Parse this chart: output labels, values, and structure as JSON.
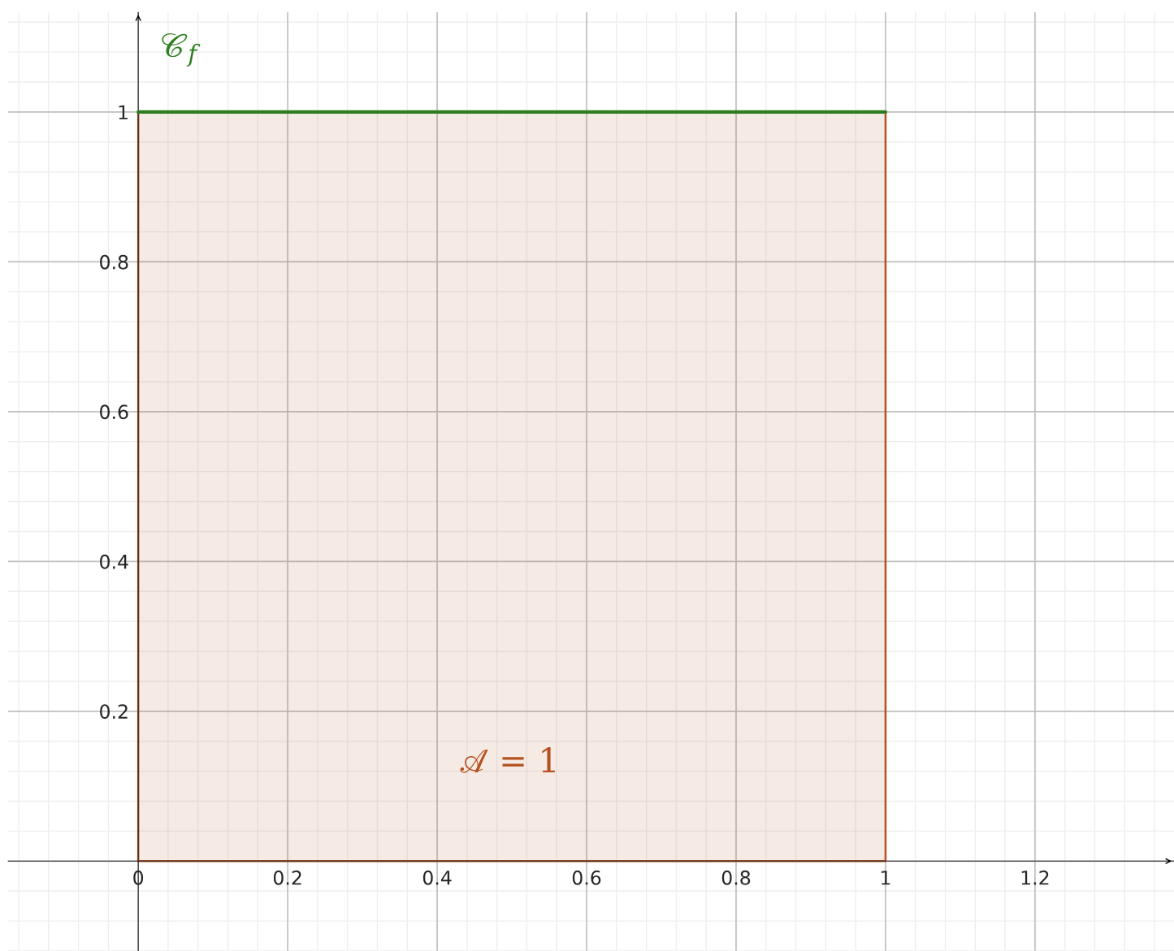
{
  "chart_data": {
    "type": "area",
    "x": [
      0,
      1
    ],
    "series": [
      {
        "color": "#b5501f",
        "values": [
          1,
          1
        ]
      },
      {
        "type": "line",
        "name": "𝒞$_{f}$",
        "color": "#2e7d1f",
        "values": [
          1,
          1
        ]
      }
    ],
    "annotations": [
      "𝒜 = 1"
    ],
    "xlim": [
      -0.174,
      1.386
    ],
    "ylim": [
      -0.12,
      1.133
    ],
    "xticks": [
      0,
      0.2,
      0.4,
      0.6,
      0.8,
      1,
      1.2
    ],
    "yticks": [
      {
        "value": 0,
        "label": null
      },
      0.2,
      0.4,
      0.6,
      0.8,
      1
    ],
    "grid": true,
    "legend": false
  }
}
